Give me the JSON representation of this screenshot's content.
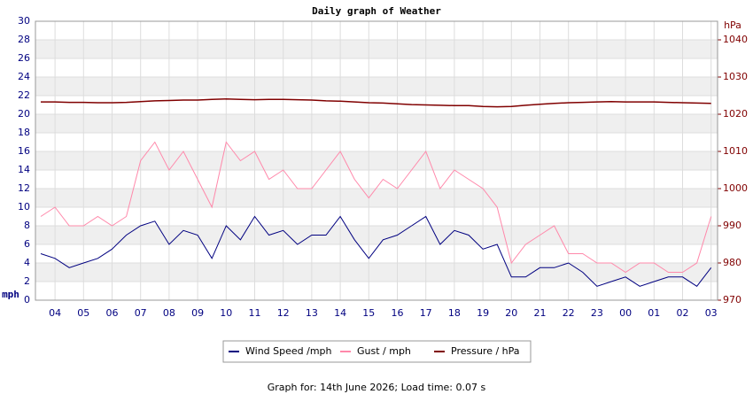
{
  "chart_data": {
    "type": "line",
    "title": "Daily graph of Weather",
    "y_label": "mph",
    "y2_label": "hPa",
    "footer": "Graph for: 14th June 2026; Load time: 0.07 s",
    "categories": [
      null,
      "04",
      null,
      "05",
      null,
      "06",
      null,
      "07",
      null,
      "08",
      null,
      "09",
      null,
      "10",
      null,
      "11",
      null,
      "12",
      null,
      "13",
      null,
      "14",
      null,
      "15",
      null,
      "16",
      null,
      "17",
      null,
      "18",
      null,
      "19",
      null,
      "20",
      null,
      "21",
      null,
      "22",
      null,
      "23",
      null,
      "00",
      null,
      "01",
      null,
      "02",
      null,
      "03"
    ],
    "series": [
      {
        "name": "Wind Speed /mph",
        "color": "#000080",
        "values": [
          5,
          4.5,
          3.5,
          4,
          4.5,
          5.5,
          7,
          8,
          8.5,
          6,
          7.5,
          7,
          4.5,
          8,
          6.5,
          9,
          7,
          7.5,
          6,
          7,
          7,
          9,
          6.5,
          4.5,
          6.5,
          7,
          8,
          9,
          6,
          7.5,
          7,
          5.5,
          6,
          2.5,
          2.5,
          3.5,
          3.5,
          4,
          3,
          1.5,
          2,
          2.5,
          1.5,
          2,
          2.5,
          2.5,
          1.5,
          3.5
        ]
      },
      {
        "name": "Gust / mph",
        "color": "#ff88aa",
        "values": [
          9,
          10,
          8,
          8,
          9,
          8,
          9,
          15,
          17,
          14,
          16,
          13,
          10,
          17,
          15,
          16,
          13,
          14,
          12,
          12,
          14,
          16,
          13,
          11,
          13,
          12,
          14,
          16,
          12,
          14,
          13,
          12,
          10,
          4,
          6,
          7,
          8,
          5,
          5,
          4,
          4,
          3,
          4,
          4,
          3,
          3,
          4,
          9
        ]
      },
      {
        "name": "Pressure / hPa",
        "color": "#800000",
        "axis": "y2",
        "values": [
          1023.3,
          1023.3,
          1023.2,
          1023.2,
          1023.1,
          1023.1,
          1023.2,
          1023.4,
          1023.6,
          1023.7,
          1023.8,
          1023.8,
          1024,
          1024.1,
          1024,
          1023.9,
          1024,
          1024,
          1023.9,
          1023.8,
          1023.6,
          1023.5,
          1023.3,
          1023.1,
          1023,
          1022.8,
          1022.6,
          1022.5,
          1022.4,
          1022.3,
          1022.3,
          1022.1,
          1022,
          1022.1,
          1022.4,
          1022.7,
          1022.9,
          1023.1,
          1023.2,
          1023.3,
          1023.4,
          1023.3,
          1023.3,
          1023.3,
          1023.2,
          1023.1,
          1023,
          1022.9
        ]
      }
    ],
    "ylim": [
      0,
      30
    ],
    "yticks": [
      0,
      2,
      4,
      6,
      8,
      10,
      12,
      14,
      16,
      18,
      20,
      22,
      24,
      26,
      28,
      30
    ],
    "y2lim": [
      970,
      1045
    ],
    "y2ticks": [
      970,
      980,
      990,
      1000,
      1010,
      1020,
      1030,
      1040
    ],
    "grid": true
  }
}
